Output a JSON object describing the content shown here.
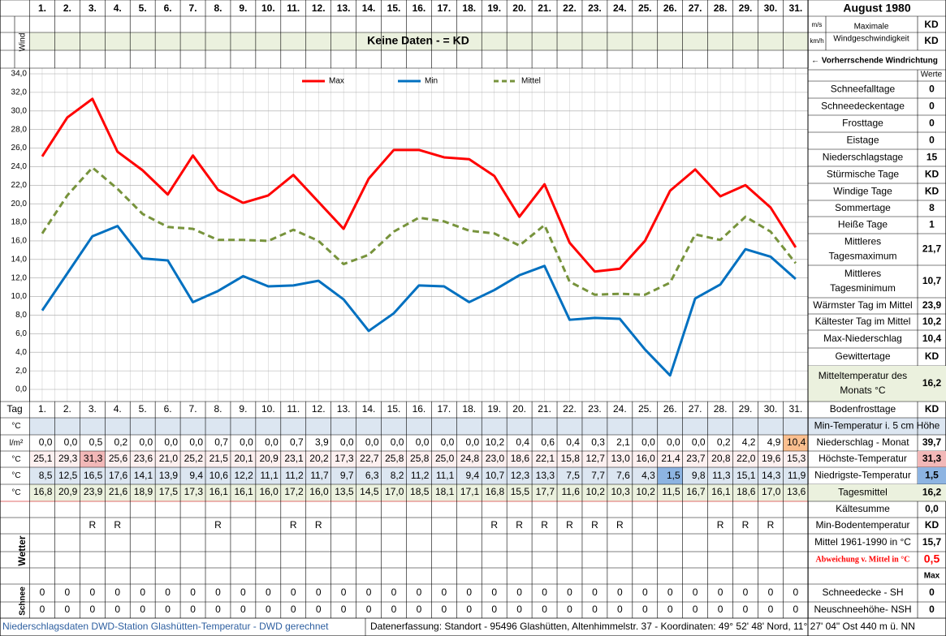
{
  "header": {
    "title": "August 1980"
  },
  "wind": {
    "label": "Wind",
    "no_data": "Keine Daten -  = KD",
    "units": [
      "m/s",
      "km/h"
    ],
    "max_label": [
      "Maximale",
      "Windgeschwindigkeit"
    ],
    "values": [
      "KD",
      "KD"
    ],
    "direction": "← Vorherrschende Windrichtung",
    "values_header": "Werte"
  },
  "chart_data": {
    "type": "line",
    "categories": [
      "1.",
      "2.",
      "3.",
      "4.",
      "5.",
      "6.",
      "7.",
      "8.",
      "9.",
      "10.",
      "11.",
      "12.",
      "13.",
      "14.",
      "15.",
      "16.",
      "17.",
      "18.",
      "19.",
      "20.",
      "21.",
      "22.",
      "23.",
      "24.",
      "25.",
      "26.",
      "27.",
      "28.",
      "29.",
      "30.",
      "31."
    ],
    "series": [
      {
        "name": "Max",
        "color": "#ff0000",
        "dash": false,
        "values": [
          25.1,
          29.3,
          31.3,
          25.6,
          23.6,
          21.0,
          25.2,
          21.5,
          20.1,
          20.9,
          23.1,
          20.2,
          17.3,
          22.7,
          25.8,
          25.8,
          25.0,
          24.8,
          23.0,
          18.6,
          22.1,
          15.8,
          12.7,
          13.0,
          16.0,
          21.4,
          23.7,
          20.8,
          22.0,
          19.6,
          15.3
        ],
        "value_labels": [
          "25,1",
          "29,3",
          "31,3",
          "25,6",
          "23,6",
          "21,0",
          "25,2",
          "21,5",
          "20,1",
          "20,9",
          "23,1",
          "20,2",
          "17,3",
          "22,7",
          "25,8",
          "25,8",
          "25,0",
          "24,8",
          "23,0",
          "18,6",
          "22,1",
          "15,8",
          "12,7",
          "13,0",
          "16,0",
          "21,4",
          "23,7",
          "20,8",
          "22,0",
          "19,6",
          "15,3"
        ]
      },
      {
        "name": "Min",
        "color": "#0070c0",
        "dash": false,
        "values": [
          8.5,
          12.5,
          16.5,
          17.6,
          14.1,
          13.9,
          9.4,
          10.6,
          12.2,
          11.1,
          11.2,
          11.7,
          9.7,
          6.3,
          8.2,
          11.2,
          11.1,
          9.4,
          10.7,
          12.3,
          13.3,
          7.5,
          7.7,
          7.6,
          4.3,
          1.5,
          9.8,
          11.3,
          15.1,
          14.3,
          11.9
        ],
        "value_labels": [
          "8,5",
          "12,5",
          "16,5",
          "17,6",
          "14,1",
          "13,9",
          "9,4",
          "10,6",
          "12,2",
          "11,1",
          "11,2",
          "11,7",
          "9,7",
          "6,3",
          "8,2",
          "11,2",
          "11,1",
          "9,4",
          "10,7",
          "12,3",
          "13,3",
          "7,5",
          "7,7",
          "7,6",
          "4,3",
          "1,5",
          "9,8",
          "11,3",
          "15,1",
          "14,3",
          "11,9"
        ]
      },
      {
        "name": "Mittel",
        "color": "#77933c",
        "dash": true,
        "values": [
          16.8,
          20.9,
          23.9,
          21.6,
          18.9,
          17.5,
          17.3,
          16.1,
          16.1,
          16.0,
          17.2,
          16.0,
          13.5,
          14.5,
          17.0,
          18.5,
          18.1,
          17.1,
          16.8,
          15.5,
          17.7,
          11.6,
          10.2,
          10.3,
          10.2,
          11.5,
          16.7,
          16.1,
          18.6,
          17.0,
          13.6
        ],
        "value_labels": [
          "16,8",
          "20,9",
          "23,9",
          "21,6",
          "18,9",
          "17,5",
          "17,3",
          "16,1",
          "16,1",
          "16,0",
          "17,2",
          "16,0",
          "13,5",
          "14,5",
          "17,0",
          "18,5",
          "18,1",
          "17,1",
          "16,8",
          "15,5",
          "17,7",
          "11,6",
          "10,2",
          "10,3",
          "10,2",
          "11,5",
          "16,7",
          "16,1",
          "18,6",
          "17,0",
          "13,6"
        ]
      }
    ],
    "ylim": [
      0,
      34
    ],
    "yticks": [
      {
        "value": 0,
        "label": "0,0"
      },
      {
        "value": 2,
        "label": "2,0"
      },
      {
        "value": 4,
        "label": "4,0"
      },
      {
        "value": 6,
        "label": "6,0"
      },
      {
        "value": 8,
        "label": "8,0"
      },
      {
        "value": 10,
        "label": "10,0"
      },
      {
        "value": 12,
        "label": "12,0"
      },
      {
        "value": 14,
        "label": "14,0"
      },
      {
        "value": 16,
        "label": "16,0"
      },
      {
        "value": 18,
        "label": "18,0"
      },
      {
        "value": 20,
        "label": "20,0"
      },
      {
        "value": 22,
        "label": "22,0"
      },
      {
        "value": 24,
        "label": "24,0"
      },
      {
        "value": 26,
        "label": "26,0"
      },
      {
        "value": 28,
        "label": "28,0"
      },
      {
        "value": 30,
        "label": "30,0"
      },
      {
        "value": 32,
        "label": "32,0"
      },
      {
        "value": 34,
        "label": "34,0"
      }
    ],
    "grid": true,
    "legend": "top"
  },
  "table": {
    "tag_label": "Tag",
    "units": [
      "°C",
      "l/m²",
      "°C",
      "°C",
      "°C"
    ],
    "precipitation": [
      "0,0",
      "0,0",
      "0,5",
      "0,2",
      "0,0",
      "0,0",
      "0,0",
      "0,7",
      "0,0",
      "0,0",
      "0,7",
      "3,9",
      "0,0",
      "0,0",
      "0,0",
      "0,0",
      "0,0",
      "0,0",
      "10,2",
      "0,4",
      "0,6",
      "0,4",
      "0,3",
      "2,1",
      "0,0",
      "0,0",
      "0,0",
      "0,2",
      "4,2",
      "4,9",
      "10,4"
    ],
    "weather_label": "Wetter",
    "weather": [
      null,
      null,
      "R",
      "R",
      null,
      null,
      null,
      "R",
      null,
      null,
      "R",
      "R",
      null,
      null,
      null,
      null,
      null,
      null,
      "R",
      "R",
      "R",
      "R",
      "R",
      "R",
      null,
      null,
      null,
      "R",
      "R",
      "R",
      null
    ],
    "snow_label": "Schnee",
    "snow_depth": [
      0,
      0,
      0,
      0,
      0,
      0,
      0,
      0,
      0,
      0,
      0,
      0,
      0,
      0,
      0,
      0,
      0,
      0,
      0,
      0,
      0,
      0,
      0,
      0,
      0,
      0,
      0,
      0,
      0,
      0,
      0
    ],
    "new_snow": [
      0,
      0,
      0,
      0,
      0,
      0,
      0,
      0,
      0,
      0,
      0,
      0,
      0,
      0,
      0,
      0,
      0,
      0,
      0,
      0,
      0,
      0,
      0,
      0,
      0,
      0,
      0,
      0,
      0,
      0,
      0
    ]
  },
  "stats": [
    {
      "label": "Schneefalltage",
      "value": 0
    },
    {
      "label": "Schneedeckentage",
      "value": 0
    },
    {
      "label": "Frosttage",
      "value": 0
    },
    {
      "label": "Eistage",
      "value": 0
    },
    {
      "label": "Niederschlagstage",
      "value": 15
    },
    {
      "label": "Stürmische Tage",
      "value": "KD"
    },
    {
      "label": "Windige Tage",
      "value": "KD"
    },
    {
      "label": "Sommertage",
      "value": 8
    },
    {
      "label": "Heiße Tage",
      "value": 1
    },
    {
      "label": [
        "Mittleres",
        "Tagesmaximum"
      ],
      "value": "21,7"
    },
    {
      "label": [
        "Mittleres",
        "Tagesminimum"
      ],
      "value": "10,7"
    },
    {
      "label": "Wärmster Tag im Mittel",
      "value": "23,9"
    },
    {
      "label": "Kältester Tag im Mittel",
      "value": "10,2"
    },
    {
      "label": "Max-Niederschlag",
      "value": "10,4"
    },
    {
      "label": "Gewittertage",
      "value": "KD"
    },
    {
      "label": [
        "Mitteltemperatur des",
        "Monats °C"
      ],
      "value": "16,2"
    },
    {
      "label": "Bodenfrosttage",
      "value": "KD"
    },
    {
      "label": "Min-Temperatur i. 5 cm Höhe"
    },
    {
      "label": "Niederschlag - Monat",
      "value": "39,7"
    },
    {
      "label": "Höchste-Temperatur",
      "value": "31,3"
    },
    {
      "label": "Niedrigste-Temperatur",
      "value": "1,5"
    },
    {
      "label": "Tagesmittel",
      "value": "16,2"
    },
    {
      "label": "Kältesumme",
      "value": "0,0"
    },
    {
      "label": "Min-Bodentemperatur",
      "value": "KD"
    },
    {
      "label": "Mittel 1961-1990 in °C",
      "value": "15,7"
    },
    {
      "label": "Abweichung v. Mittel in °C",
      "value": "0,5"
    },
    {
      "value": "Max"
    },
    {
      "label": "Schneedecke -  SH",
      "value": 0
    },
    {
      "label": "Neuschneehöhe- NSH",
      "value": 0
    }
  ],
  "footer": {
    "left": "Niederschlagsdaten DWD-Station Glashütten-Temperatur -  DWD gerechnet",
    "right": "Datenerfassung: Standort -  95496 Glashütten, Altenhimmelstr. 37 - Koordinaten: 49° 52' 48' Nord,   11° 27' 04\" Ost  440 m ü. NN"
  }
}
